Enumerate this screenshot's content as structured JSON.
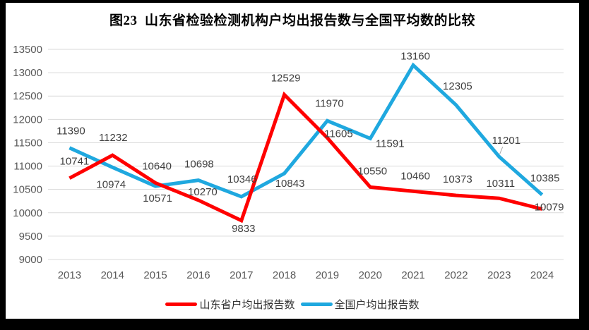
{
  "title": "图23  山东省检验检测机构户均出报告数与全国平均数的比较",
  "chart_data": {
    "type": "line",
    "title": "图23  山东省检验检测机构户均出报告数与全国平均数的比较",
    "categories": [
      "2013",
      "2014",
      "2015",
      "2016",
      "2017",
      "2018",
      "2019",
      "2020",
      "2021",
      "2022",
      "2023",
      "2024"
    ],
    "series": [
      {
        "name": "全国户均出报告数",
        "color": "#1FA8DF",
        "values": [
          11390,
          10974,
          10571,
          10698,
          10346,
          10843,
          11970,
          11591,
          13160,
          12305,
          11201,
          10385
        ],
        "label_offsets": [
          [
            2,
            -24
          ],
          [
            -2,
            24
          ],
          [
            3,
            17
          ],
          [
            1,
            -23
          ],
          [
            1,
            -25
          ],
          [
            8,
            14
          ],
          [
            3,
            -25
          ],
          [
            28,
            7
          ],
          [
            3,
            -13
          ],
          [
            2,
            -27
          ],
          [
            10,
            -23
          ],
          [
            4,
            -24
          ]
        ],
        "leader": {
          "index": 10,
          "from": [
            5,
            -14
          ],
          "to": [
            1,
            -4
          ]
        }
      },
      {
        "name": "山东省户均出报告数",
        "color": "#FF0000",
        "values": [
          10741,
          11232,
          10640,
          10270,
          9833,
          12529,
          11605,
          10550,
          10460,
          10373,
          10311,
          10079
        ],
        "label_offsets": [
          [
            7,
            -24
          ],
          [
            1,
            -25
          ],
          [
            2,
            -24
          ],
          [
            6,
            -12
          ],
          [
            3,
            11
          ],
          [
            2,
            -24
          ],
          [
            16,
            -6
          ],
          [
            3,
            -23
          ],
          [
            3,
            -22
          ],
          [
            2,
            -23
          ],
          [
            2,
            -21
          ],
          [
            10,
            -3
          ]
        ]
      }
    ],
    "legend_order": [
      1,
      0
    ],
    "ylim": [
      9000,
      13500
    ],
    "ytick_step": 500,
    "yticks": [
      9000,
      9500,
      10000,
      10500,
      11000,
      11500,
      12000,
      12500,
      13000,
      13500
    ],
    "grid": "horizontal",
    "legend_position": "bottom",
    "colors": {
      "grid": "#D9D9D9",
      "tick_text": "#595959",
      "data_label": "#3F3F3F",
      "leader_line": "#A6A6A6",
      "frame": "#000000",
      "background": "#FFFFFF"
    },
    "line_width": 5
  }
}
